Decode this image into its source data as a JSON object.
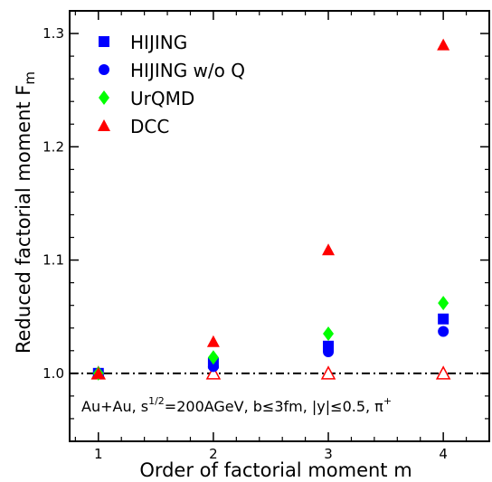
{
  "chart_data": {
    "type": "scatter",
    "title": "",
    "xlabel": "Order of factorial moment m",
    "ylabel_main": "Reduced factorial moment F",
    "ylabel_sub": "m",
    "xlim": [
      0.75,
      4.4
    ],
    "ylim": [
      0.94,
      1.32
    ],
    "x_ticks": [
      1,
      2,
      3,
      4
    ],
    "y_ticks": [
      1.0,
      1.1,
      1.2,
      1.3
    ],
    "y_tick_labels": [
      "1.0",
      "1.1",
      "1.2",
      "1.3"
    ],
    "x_tick_labels": [
      "1",
      "2",
      "3",
      "4"
    ],
    "reference_line": 1.0,
    "legend_position": "top-left",
    "series": [
      {
        "name": "HIJING",
        "marker": "square",
        "color": "#0000ff",
        "x": [
          1,
          2,
          3,
          4
        ],
        "values": [
          1.0,
          1.009,
          1.024,
          1.048
        ]
      },
      {
        "name": "HIJING w/o Q",
        "marker": "circle",
        "color": "#0000ff",
        "x": [
          1,
          2,
          3,
          4
        ],
        "values": [
          1.0,
          1.006,
          1.019,
          1.037
        ]
      },
      {
        "name": "UrQMD",
        "marker": "diamond",
        "color": "#00ff00",
        "x": [
          1,
          2,
          3,
          4
        ],
        "values": [
          1.0,
          1.014,
          1.035,
          1.062
        ]
      },
      {
        "name": "DCC",
        "marker": "triangle",
        "color": "#ff0000",
        "x": [
          1,
          2,
          3,
          4
        ],
        "values": [
          1.0,
          1.028,
          1.109,
          1.29
        ]
      }
    ],
    "open_triangles": {
      "color": "#ff0000",
      "x": [
        1,
        2,
        3,
        4
      ],
      "values": [
        1.0,
        1.0,
        1.0,
        1.0
      ]
    },
    "annotation": {
      "text_a": "Au+Au, s",
      "text_sup": "1/2",
      "text_b": "=200AGeV, b",
      "text_leq1": "≤",
      "text_c": "3fm, |y|",
      "text_leq2": "≤",
      "text_d": "0.5, π",
      "text_pisup": "+"
    }
  }
}
